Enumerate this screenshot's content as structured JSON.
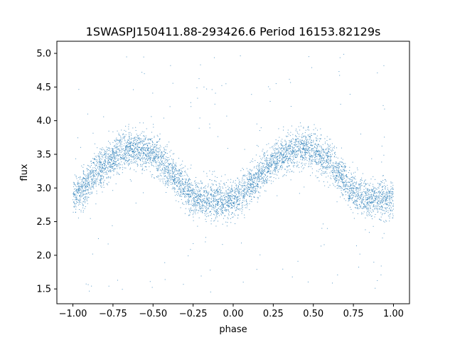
{
  "chart_data": {
    "type": "scatter",
    "title": "1SWASPJ150411.88-293426.6 Period 16153.82129s",
    "xlabel": "phase",
    "ylabel": "flux",
    "xlim": [
      -1.1,
      1.1
    ],
    "ylim": [
      1.28,
      5.18
    ],
    "x_ticks": [
      -1.0,
      -0.75,
      -0.5,
      -0.25,
      0.0,
      0.25,
      0.5,
      0.75,
      1.0
    ],
    "x_tick_labels": [
      "−1.00",
      "−0.75",
      "−0.50",
      "−0.25",
      "0.00",
      "0.25",
      "0.50",
      "0.75",
      "1.00"
    ],
    "y_ticks": [
      1.5,
      2.0,
      2.5,
      3.0,
      3.5,
      4.0,
      4.5,
      5.0
    ],
    "y_tick_labels": [
      "1.5",
      "2.0",
      "2.5",
      "3.0",
      "3.5",
      "4.0",
      "4.5",
      "5.0"
    ],
    "grid": false,
    "legend": "none",
    "marker_color": "#1f77b4",
    "series": [
      {
        "points_note_x": [
          -1.0,
          -0.95,
          -0.9,
          -0.85,
          -0.8,
          -0.75,
          -0.7,
          -0.65,
          -0.6,
          -0.55,
          -0.5,
          -0.45,
          -0.4,
          -0.35,
          -0.3,
          -0.25,
          -0.2,
          -0.15,
          -0.1,
          -0.05,
          0.0,
          0.05,
          0.1,
          0.15,
          0.2,
          0.25,
          0.3,
          0.35,
          0.4,
          0.45,
          0.5,
          0.55,
          0.6,
          0.65,
          0.7,
          0.75,
          0.8,
          0.85,
          0.9,
          0.95,
          1.0
        ],
        "values": [
          2.88,
          2.97,
          3.1,
          3.24,
          3.36,
          3.45,
          3.52,
          3.56,
          3.57,
          3.55,
          3.49,
          3.4,
          3.28,
          3.13,
          2.99,
          2.88,
          2.81,
          2.8,
          2.8,
          2.81,
          2.83,
          2.9,
          3.02,
          3.15,
          3.27,
          3.38,
          3.48,
          3.55,
          3.59,
          3.59,
          3.55,
          3.48,
          3.38,
          3.24,
          3.08,
          2.95,
          2.87,
          2.84,
          2.84,
          2.84,
          2.84
        ],
        "scatter_spread": 0.14,
        "outlier_range": [
          1.45,
          5.0
        ]
      }
    ]
  }
}
